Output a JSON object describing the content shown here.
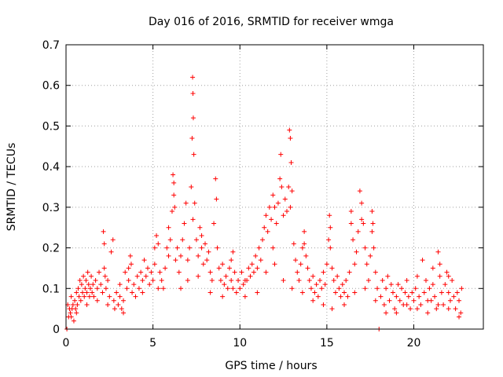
{
  "chart_data": {
    "type": "scatter",
    "title": "Day 016 of 2016, SRMTID for receiver wmga",
    "xlabel": "GPS time / hours",
    "ylabel": "SRMTID / TECUs",
    "xlim": [
      0,
      24
    ],
    "ylim": [
      0,
      0.7
    ],
    "x_ticks": [
      "0",
      "5",
      "10",
      "15",
      "20"
    ],
    "y_ticks": [
      "0",
      "0.1",
      "0.2",
      "0.3",
      "0.4",
      "0.5",
      "0.6",
      "0.7"
    ],
    "grid": true,
    "marker": "+",
    "color": "#ff0000",
    "series": [
      {
        "name": "SRMTID",
        "points": [
          [
            0.05,
            0.0
          ],
          [
            0.1,
            0.06
          ],
          [
            0.15,
            0.03
          ],
          [
            0.2,
            0.05
          ],
          [
            0.25,
            0.04
          ],
          [
            0.3,
            0.08
          ],
          [
            0.35,
            0.05
          ],
          [
            0.4,
            0.06
          ],
          [
            0.45,
            0.02
          ],
          [
            0.5,
            0.07
          ],
          [
            0.55,
            0.05
          ],
          [
            0.6,
            0.09
          ],
          [
            0.65,
            0.06
          ],
          [
            0.7,
            0.1
          ],
          [
            0.75,
            0.08
          ],
          [
            0.8,
            0.12
          ],
          [
            0.85,
            0.07
          ],
          [
            0.9,
            0.11
          ],
          [
            0.95,
            0.09
          ],
          [
            1.0,
            0.13
          ],
          [
            1.05,
            0.08
          ],
          [
            1.1,
            0.1
          ],
          [
            1.15,
            0.12
          ],
          [
            1.2,
            0.09
          ],
          [
            1.25,
            0.14
          ],
          [
            1.3,
            0.11
          ],
          [
            1.35,
            0.08
          ],
          [
            1.4,
            0.1
          ],
          [
            1.45,
            0.13
          ],
          [
            1.5,
            0.09
          ],
          [
            1.55,
            0.11
          ],
          [
            1.6,
            0.08
          ],
          [
            1.7,
            0.12
          ],
          [
            1.8,
            0.1
          ],
          [
            1.9,
            0.14
          ],
          [
            2.0,
            0.11
          ],
          [
            2.1,
            0.09
          ],
          [
            2.15,
            0.24
          ],
          [
            2.2,
            0.21
          ],
          [
            2.25,
            0.13
          ],
          [
            2.3,
            0.1
          ],
          [
            2.4,
            0.12
          ],
          [
            2.5,
            0.08
          ],
          [
            2.6,
            0.19
          ],
          [
            2.7,
            0.22
          ],
          [
            2.75,
            0.07
          ],
          [
            2.8,
            0.05
          ],
          [
            2.9,
            0.09
          ],
          [
            3.0,
            0.06
          ],
          [
            3.1,
            0.08
          ],
          [
            3.2,
            0.05
          ],
          [
            3.3,
            0.07
          ],
          [
            3.4,
            0.14
          ],
          [
            3.5,
            0.1
          ],
          [
            3.6,
            0.12
          ],
          [
            3.7,
            0.18
          ],
          [
            3.75,
            0.16
          ],
          [
            3.8,
            0.09
          ],
          [
            3.9,
            0.11
          ],
          [
            4.0,
            0.08
          ],
          [
            4.1,
            0.13
          ],
          [
            4.2,
            0.1
          ],
          [
            4.3,
            0.14
          ],
          [
            4.4,
            0.12
          ],
          [
            4.5,
            0.17
          ],
          [
            4.6,
            0.13
          ],
          [
            4.7,
            0.15
          ],
          [
            4.8,
            0.11
          ],
          [
            4.9,
            0.14
          ],
          [
            5.0,
            0.12
          ],
          [
            5.1,
            0.16
          ],
          [
            5.2,
            0.23
          ],
          [
            5.3,
            0.21
          ],
          [
            5.4,
            0.14
          ],
          [
            5.5,
            0.12
          ],
          [
            5.6,
            0.1
          ],
          [
            5.7,
            0.15
          ],
          [
            5.8,
            0.2
          ],
          [
            5.9,
            0.25
          ],
          [
            6.0,
            0.22
          ],
          [
            6.1,
            0.29
          ],
          [
            6.15,
            0.38
          ],
          [
            6.2,
            0.36
          ],
          [
            6.25,
            0.3
          ],
          [
            6.3,
            0.17
          ],
          [
            6.4,
            0.2
          ],
          [
            6.5,
            0.14
          ],
          [
            6.6,
            0.18
          ],
          [
            6.7,
            0.22
          ],
          [
            6.8,
            0.26
          ],
          [
            6.9,
            0.31
          ],
          [
            7.0,
            0.17
          ],
          [
            7.1,
            0.2
          ],
          [
            7.2,
            0.35
          ],
          [
            7.25,
            0.47
          ],
          [
            7.28,
            0.62
          ],
          [
            7.3,
            0.58
          ],
          [
            7.32,
            0.52
          ],
          [
            7.35,
            0.43
          ],
          [
            7.4,
            0.31
          ],
          [
            7.5,
            0.22
          ],
          [
            7.6,
            0.18
          ],
          [
            7.7,
            0.25
          ],
          [
            7.8,
            0.2
          ],
          [
            7.9,
            0.16
          ],
          [
            8.0,
            0.21
          ],
          [
            8.1,
            0.17
          ],
          [
            8.2,
            0.19
          ],
          [
            8.3,
            0.14
          ],
          [
            8.4,
            0.12
          ],
          [
            8.5,
            0.26
          ],
          [
            8.6,
            0.37
          ],
          [
            8.65,
            0.32
          ],
          [
            8.7,
            0.2
          ],
          [
            8.8,
            0.15
          ],
          [
            8.9,
            0.12
          ],
          [
            9.0,
            0.16
          ],
          [
            9.1,
            0.11
          ],
          [
            9.2,
            0.13
          ],
          [
            9.3,
            0.1
          ],
          [
            9.4,
            0.15
          ],
          [
            9.5,
            0.12
          ],
          [
            9.6,
            0.19
          ],
          [
            9.7,
            0.14
          ],
          [
            9.8,
            0.09
          ],
          [
            9.9,
            0.12
          ],
          [
            10.0,
            0.1
          ],
          [
            10.1,
            0.14
          ],
          [
            10.2,
            0.11
          ],
          [
            10.3,
            0.08
          ],
          [
            10.4,
            0.12
          ],
          [
            10.5,
            0.15
          ],
          [
            10.6,
            0.13
          ],
          [
            10.7,
            0.16
          ],
          [
            10.8,
            0.14
          ],
          [
            10.9,
            0.18
          ],
          [
            11.0,
            0.15
          ],
          [
            11.1,
            0.2
          ],
          [
            11.2,
            0.17
          ],
          [
            11.3,
            0.22
          ],
          [
            11.4,
            0.25
          ],
          [
            11.5,
            0.28
          ],
          [
            11.6,
            0.24
          ],
          [
            11.7,
            0.3
          ],
          [
            11.8,
            0.27
          ],
          [
            11.9,
            0.33
          ],
          [
            12.0,
            0.3
          ],
          [
            12.1,
            0.26
          ],
          [
            12.2,
            0.31
          ],
          [
            12.3,
            0.37
          ],
          [
            12.35,
            0.43
          ],
          [
            12.4,
            0.35
          ],
          [
            12.5,
            0.28
          ],
          [
            12.6,
            0.32
          ],
          [
            12.7,
            0.29
          ],
          [
            12.8,
            0.35
          ],
          [
            12.85,
            0.49
          ],
          [
            12.9,
            0.47
          ],
          [
            12.95,
            0.41
          ],
          [
            13.0,
            0.34
          ],
          [
            13.1,
            0.21
          ],
          [
            13.2,
            0.17
          ],
          [
            13.3,
            0.14
          ],
          [
            13.4,
            0.12
          ],
          [
            13.5,
            0.16
          ],
          [
            13.6,
            0.2
          ],
          [
            13.7,
            0.24
          ],
          [
            13.8,
            0.18
          ],
          [
            13.9,
            0.15
          ],
          [
            14.0,
            0.12
          ],
          [
            14.1,
            0.1
          ],
          [
            14.2,
            0.13
          ],
          [
            14.3,
            0.09
          ],
          [
            14.4,
            0.11
          ],
          [
            14.5,
            0.08
          ],
          [
            14.6,
            0.12
          ],
          [
            14.7,
            0.1
          ],
          [
            14.8,
            0.14
          ],
          [
            14.9,
            0.11
          ],
          [
            15.0,
            0.16
          ],
          [
            15.1,
            0.22
          ],
          [
            15.15,
            0.28
          ],
          [
            15.2,
            0.25
          ],
          [
            15.3,
            0.15
          ],
          [
            15.4,
            0.12
          ],
          [
            15.5,
            0.09
          ],
          [
            15.6,
            0.13
          ],
          [
            15.7,
            0.1
          ],
          [
            15.8,
            0.08
          ],
          [
            15.9,
            0.11
          ],
          [
            16.0,
            0.09
          ],
          [
            16.1,
            0.12
          ],
          [
            16.2,
            0.08
          ],
          [
            16.3,
            0.14
          ],
          [
            16.4,
            0.29
          ],
          [
            16.5,
            0.22
          ],
          [
            16.6,
            0.16
          ],
          [
            16.7,
            0.19
          ],
          [
            16.8,
            0.24
          ],
          [
            16.9,
            0.34
          ],
          [
            17.0,
            0.31
          ],
          [
            17.1,
            0.26
          ],
          [
            17.2,
            0.2
          ],
          [
            17.3,
            0.16
          ],
          [
            17.4,
            0.12
          ],
          [
            17.5,
            0.18
          ],
          [
            17.6,
            0.29
          ],
          [
            17.65,
            0.26
          ],
          [
            17.7,
            0.2
          ],
          [
            17.8,
            0.14
          ],
          [
            17.9,
            0.1
          ],
          [
            18.0,
            0.0
          ],
          [
            18.1,
            0.08
          ],
          [
            18.2,
            0.12
          ],
          [
            18.3,
            0.06
          ],
          [
            18.4,
            0.1
          ],
          [
            18.5,
            0.13
          ],
          [
            18.6,
            0.07
          ],
          [
            18.7,
            0.11
          ],
          [
            18.8,
            0.09
          ],
          [
            18.9,
            0.05
          ],
          [
            19.0,
            0.08
          ],
          [
            19.1,
            0.11
          ],
          [
            19.2,
            0.07
          ],
          [
            19.3,
            0.1
          ],
          [
            19.4,
            0.06
          ],
          [
            19.5,
            0.09
          ],
          [
            19.6,
            0.12
          ],
          [
            19.7,
            0.08
          ],
          [
            19.8,
            0.05
          ],
          [
            19.9,
            0.09
          ],
          [
            20.0,
            0.07
          ],
          [
            20.1,
            0.1
          ],
          [
            20.2,
            0.13
          ],
          [
            20.3,
            0.08
          ],
          [
            20.4,
            0.06
          ],
          [
            20.5,
            0.17
          ],
          [
            20.6,
            0.09
          ],
          [
            20.7,
            0.12
          ],
          [
            20.8,
            0.04
          ],
          [
            20.9,
            0.1
          ],
          [
            21.0,
            0.07
          ],
          [
            21.1,
            0.11
          ],
          [
            21.2,
            0.08
          ],
          [
            21.3,
            0.05
          ],
          [
            21.4,
            0.19
          ],
          [
            21.5,
            0.13
          ],
          [
            21.6,
            0.09
          ],
          [
            21.7,
            0.06
          ],
          [
            21.8,
            0.11
          ],
          [
            21.9,
            0.14
          ],
          [
            22.0,
            0.09
          ],
          [
            22.1,
            0.07
          ],
          [
            22.2,
            0.12
          ],
          [
            22.3,
            0.08
          ],
          [
            22.4,
            0.05
          ],
          [
            22.5,
            0.09
          ],
          [
            22.6,
            0.07
          ],
          [
            22.7,
            0.04
          ],
          [
            22.75,
            0.1
          ],
          [
            0.3,
            0.03
          ],
          [
            0.6,
            0.04
          ],
          [
            1.2,
            0.06
          ],
          [
            1.8,
            0.07
          ],
          [
            2.4,
            0.06
          ],
          [
            3.1,
            0.11
          ],
          [
            3.3,
            0.04
          ],
          [
            4.4,
            0.09
          ],
          [
            5.3,
            0.1
          ],
          [
            5.9,
            0.18
          ],
          [
            6.6,
            0.1
          ],
          [
            7.0,
            0.12
          ],
          [
            7.6,
            0.13
          ],
          [
            8.3,
            0.09
          ],
          [
            9.0,
            0.08
          ],
          [
            9.6,
            0.1
          ],
          [
            10.3,
            0.12
          ],
          [
            11.0,
            0.09
          ],
          [
            11.5,
            0.14
          ],
          [
            12.0,
            0.16
          ],
          [
            12.5,
            0.12
          ],
          [
            13.0,
            0.1
          ],
          [
            13.6,
            0.09
          ],
          [
            14.2,
            0.07
          ],
          [
            14.8,
            0.06
          ],
          [
            15.3,
            0.05
          ],
          [
            16.0,
            0.06
          ],
          [
            16.6,
            0.09
          ],
          [
            17.2,
            0.1
          ],
          [
            17.8,
            0.07
          ],
          [
            18.4,
            0.04
          ],
          [
            19.0,
            0.04
          ],
          [
            19.6,
            0.06
          ],
          [
            20.2,
            0.05
          ],
          [
            20.8,
            0.07
          ],
          [
            21.4,
            0.06
          ],
          [
            22.0,
            0.05
          ],
          [
            22.6,
            0.03
          ],
          [
            2.2,
            0.15
          ],
          [
            3.6,
            0.15
          ],
          [
            5.1,
            0.2
          ],
          [
            6.2,
            0.33
          ],
          [
            7.3,
            0.27
          ],
          [
            7.8,
            0.23
          ],
          [
            9.5,
            0.17
          ],
          [
            11.9,
            0.2
          ],
          [
            12.9,
            0.3
          ],
          [
            13.7,
            0.21
          ],
          [
            15.2,
            0.2
          ],
          [
            16.4,
            0.26
          ],
          [
            17.0,
            0.27
          ],
          [
            17.6,
            0.24
          ],
          [
            21.1,
            0.15
          ],
          [
            21.5,
            0.16
          ],
          [
            22.0,
            0.13
          ]
        ]
      }
    ]
  }
}
